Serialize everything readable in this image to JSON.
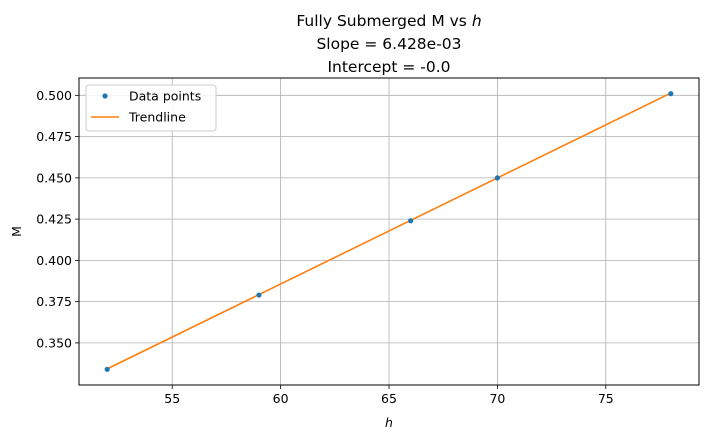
{
  "chart_data": {
    "type": "line",
    "title_lines": [
      "Fully Submerged M vs h",
      "Slope = 6.428e-03",
      "Intercept = -0.0"
    ],
    "title_main": "Fully Submerged M vs ",
    "title_var": "h",
    "subtitle_slope": "Slope = 6.428e-03",
    "subtitle_intercept": "Intercept = -0.0",
    "xlabel": "h",
    "ylabel": "M",
    "xlim": [
      50.7,
      79.3
    ],
    "ylim": [
      0.3245,
      0.5105
    ],
    "xticks": [
      55,
      60,
      65,
      70,
      75
    ],
    "yticks": [
      0.35,
      0.375,
      0.4,
      0.425,
      0.45,
      0.475,
      0.5
    ],
    "ytick_labels": [
      "0.350",
      "0.375",
      "0.400",
      "0.425",
      "0.450",
      "0.475",
      "0.500"
    ],
    "grid": true,
    "legend_position": "upper-left",
    "series": [
      {
        "name": "Data points",
        "kind": "scatter",
        "color": "#1f77b4",
        "x": [
          52,
          59,
          66,
          70,
          78
        ],
        "y": [
          0.334,
          0.379,
          0.424,
          0.45,
          0.501
        ]
      },
      {
        "name": "Trendline",
        "kind": "line",
        "color": "#ff7f0e",
        "slope": 0.006428,
        "intercept": 0.0,
        "x": [
          52,
          78
        ],
        "y": [
          0.33426,
          0.50138
        ]
      }
    ]
  }
}
